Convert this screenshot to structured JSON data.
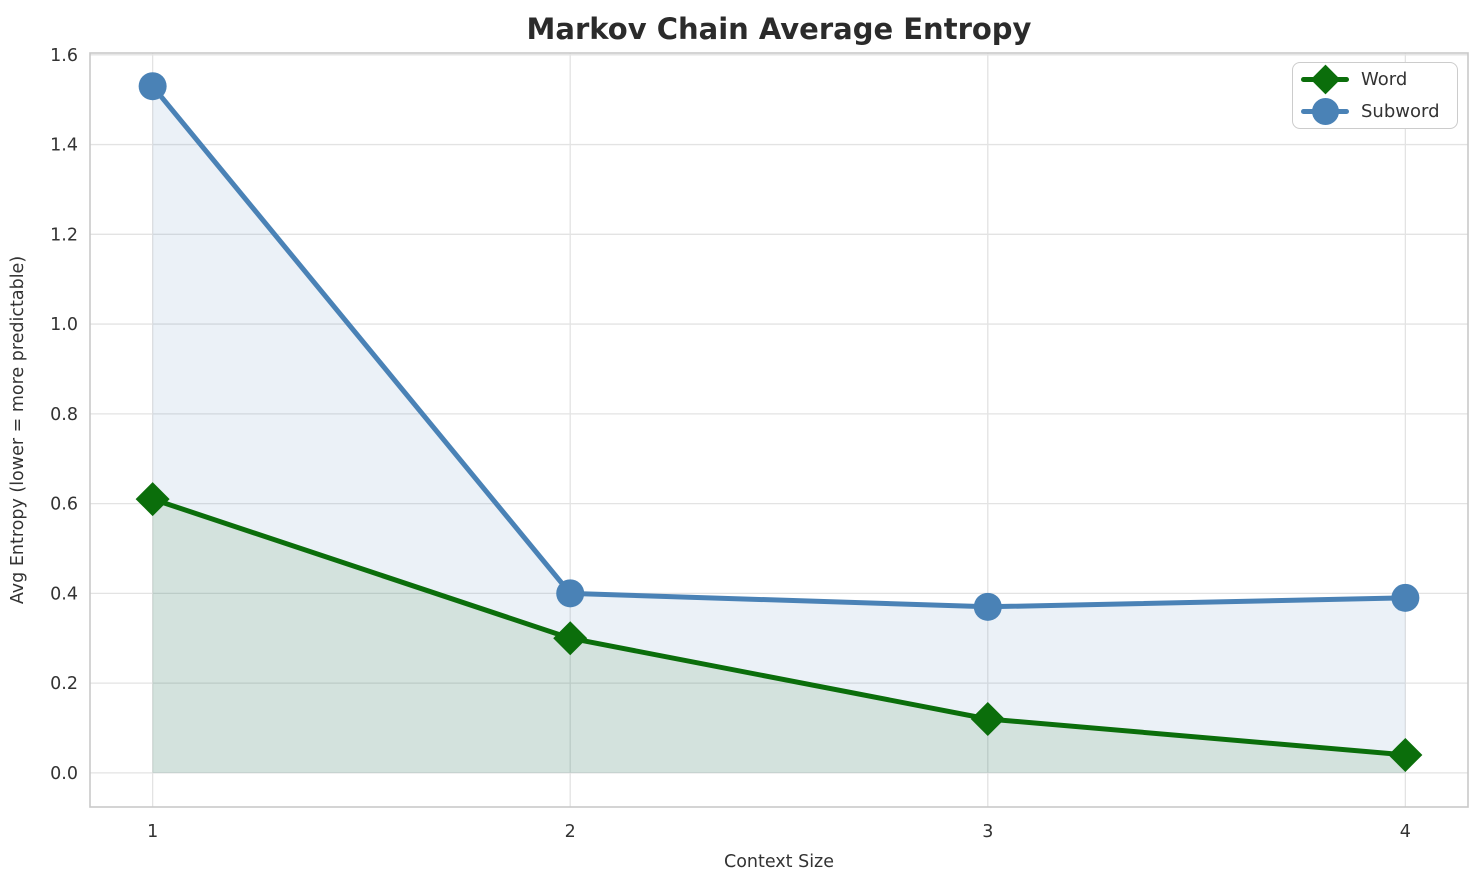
{
  "chart_data": {
    "type": "line",
    "title": "Markov Chain Average Entropy",
    "xlabel": "Context Size",
    "ylabel": "Avg Entropy (lower = more predictable)",
    "x": [
      1,
      2,
      3,
      4
    ],
    "series": [
      {
        "name": "Word",
        "values": [
          0.61,
          0.3,
          0.12,
          0.04
        ],
        "color": "#0b6e0b",
        "marker": "diamond",
        "fill_rgba": "rgba(0,100,0,0.10)"
      },
      {
        "name": "Subword",
        "values": [
          1.53,
          0.4,
          0.37,
          0.39
        ],
        "color": "#4a82b6",
        "marker": "circle",
        "fill_rgba": "rgba(70,130,180,0.11)"
      }
    ],
    "x_tick_labels": [
      "1",
      "2",
      "3",
      "4"
    ],
    "x_tick_values": [
      1,
      2,
      3,
      4
    ],
    "y_tick_labels": [
      "0.0",
      "0.2",
      "0.4",
      "0.6",
      "0.8",
      "1.0",
      "1.2",
      "1.4",
      "1.6"
    ],
    "y_tick_values": [
      0.0,
      0.2,
      0.4,
      0.6,
      0.8,
      1.0,
      1.2,
      1.4,
      1.6
    ],
    "xlim": [
      0.85,
      4.15
    ],
    "ylim": [
      -0.076,
      1.604
    ],
    "grid": true,
    "area_fill_baseline": 0,
    "legend": {
      "position": "top-right",
      "entries": [
        "Word",
        "Subword"
      ]
    }
  },
  "style": {
    "grid_color": "#e3e3e3",
    "spine_color": "#c9c9c9",
    "title_color": "#2b2b2b",
    "label_color": "#333333",
    "tick_color": "#333333",
    "line_width": 5
  }
}
